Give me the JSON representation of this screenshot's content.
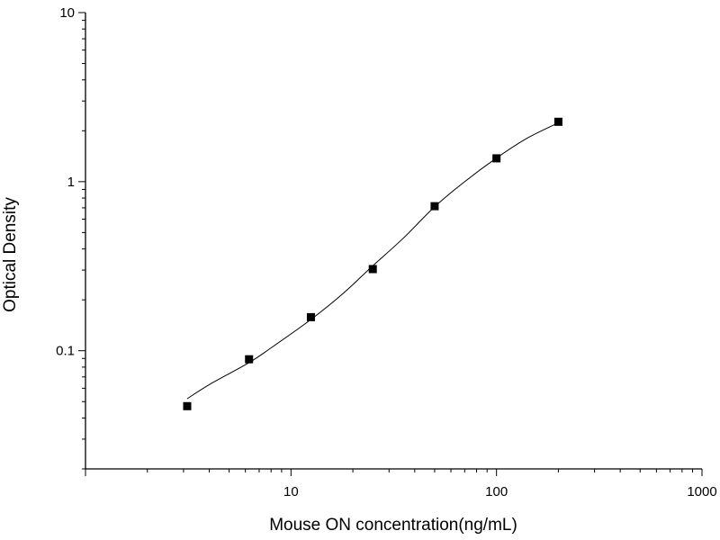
{
  "chart_data": {
    "type": "scatter",
    "title": "",
    "xlabel": "Mouse ON concentration(ng/mL)",
    "ylabel": "Optical Density",
    "xscale": "log",
    "yscale": "log",
    "xlim": [
      1,
      1000
    ],
    "ylim": [
      0.02,
      10
    ],
    "x_ticks": [
      10,
      100,
      1000
    ],
    "x_tick_labels": [
      "10",
      "100",
      "1000"
    ],
    "y_ticks": [
      0.1,
      1,
      10
    ],
    "y_tick_labels": [
      "0.1",
      "1",
      "10"
    ],
    "grid": false,
    "legend": "none",
    "marker": "square",
    "marker_color": "#000000",
    "line_color": "#000000",
    "series": [
      {
        "points": [
          {
            "x": 3.125,
            "y": 0.047
          },
          {
            "x": 6.25,
            "y": 0.089
          },
          {
            "x": 12.5,
            "y": 0.158
          },
          {
            "x": 25,
            "y": 0.304
          },
          {
            "x": 50,
            "y": 0.716
          },
          {
            "x": 100,
            "y": 1.374
          },
          {
            "x": 200,
            "y": 2.26
          }
        ]
      }
    ],
    "fit_curve": {
      "x": [
        3.125,
        4,
        6.25,
        8,
        12.5,
        18,
        25,
        35,
        50,
        70,
        100,
        140,
        200
      ],
      "y": [
        0.052,
        0.063,
        0.085,
        0.104,
        0.153,
        0.219,
        0.318,
        0.46,
        0.71,
        1.0,
        1.38,
        1.8,
        2.23
      ]
    }
  }
}
